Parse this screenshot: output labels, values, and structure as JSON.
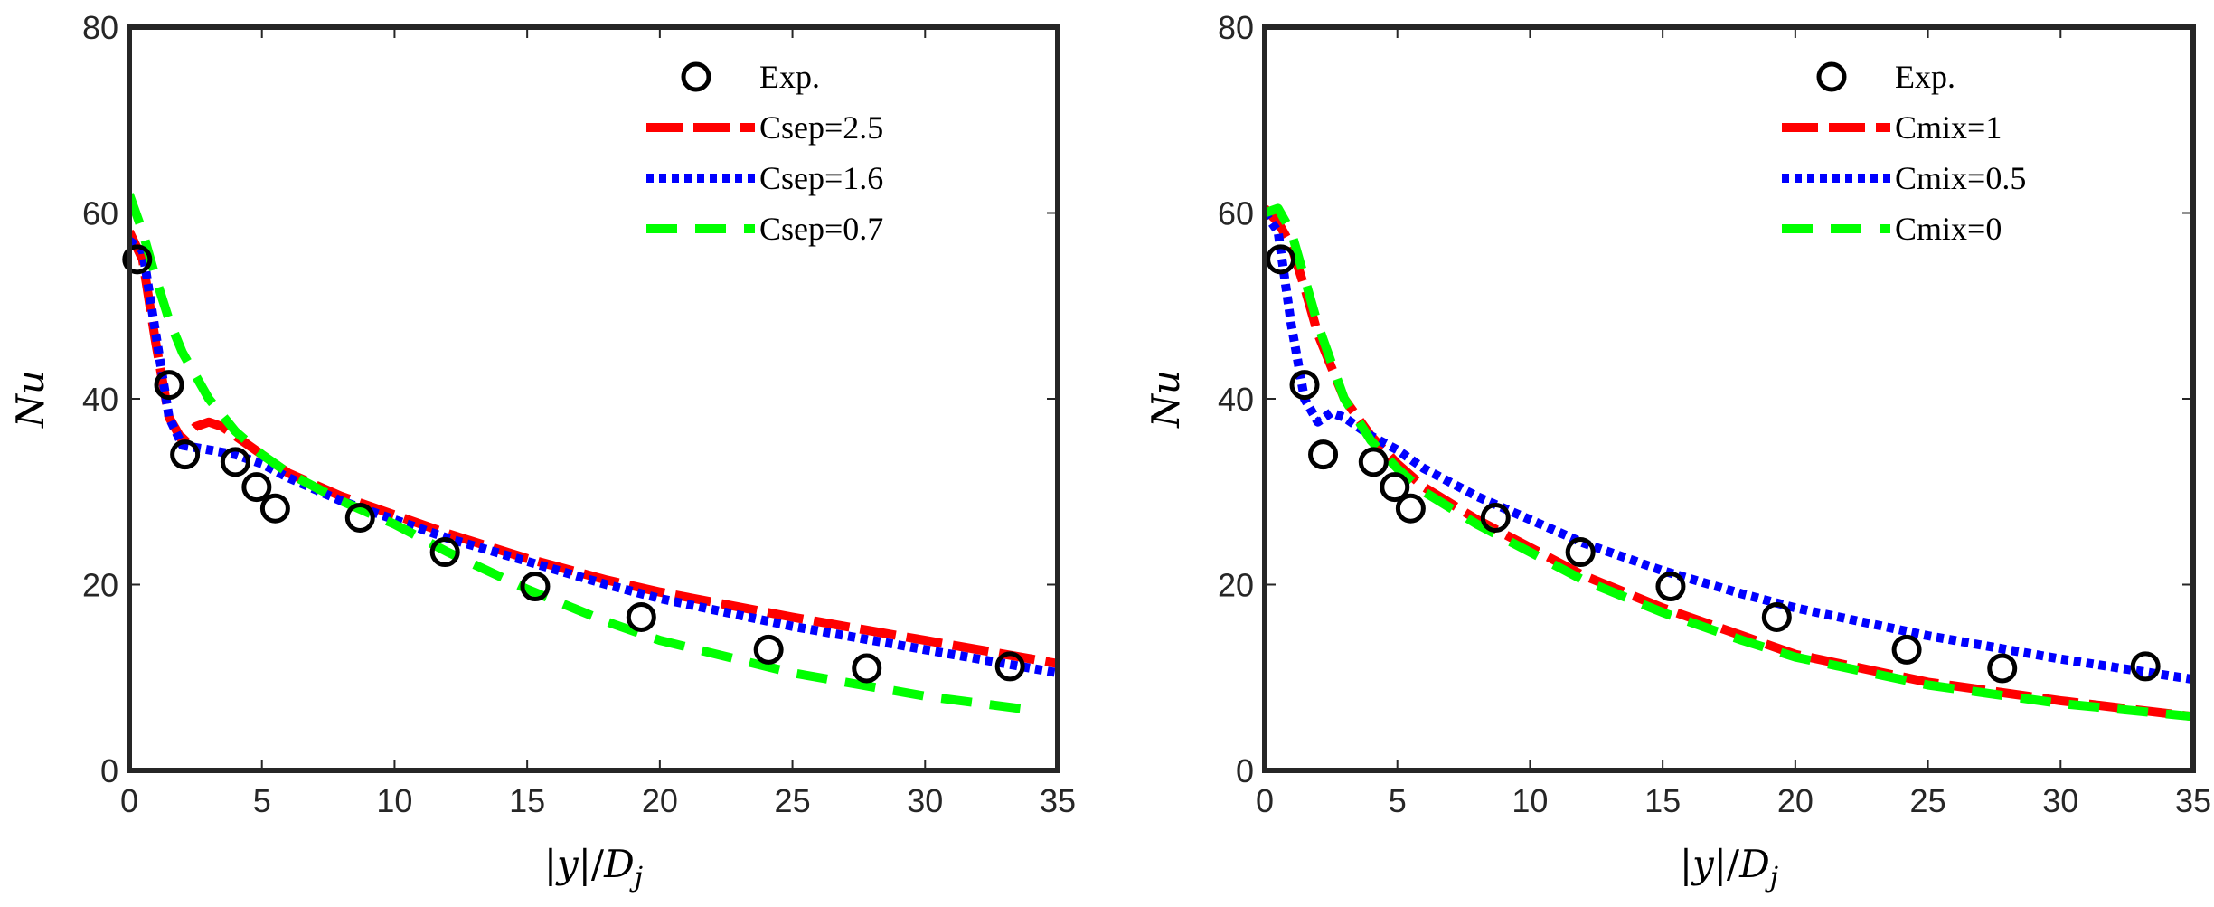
{
  "chart_data": [
    {
      "type": "line",
      "xlabel": "|y|/D_j",
      "xlabel_parts": {
        "bar1": "|",
        "var": "y",
        "bar2": "|/",
        "sym": "D",
        "sub": "j"
      },
      "ylabel": "Nu",
      "xlim": [
        0,
        35
      ],
      "ylim": [
        0,
        80
      ],
      "xticks": [
        0,
        5,
        10,
        15,
        20,
        25,
        30,
        35
      ],
      "yticks": [
        0,
        20,
        40,
        60,
        80
      ],
      "legend_position": "top-right",
      "experiment": {
        "name": "Exp.",
        "x": [
          0.3,
          1.5,
          2.1,
          4.0,
          4.8,
          5.5,
          8.7,
          11.9,
          15.3,
          19.3,
          24.1,
          27.8,
          33.2
        ],
        "y": [
          55,
          41.5,
          34,
          33.2,
          30.5,
          28.2,
          27.2,
          23.5,
          19.8,
          16.5,
          13,
          11,
          11.2
        ]
      },
      "series": [
        {
          "name": "Csep=2.5",
          "color": "#ff0000",
          "dash": "long-dash",
          "x": [
            0,
            0.5,
            1,
            1.5,
            2,
            2.5,
            3,
            3.5,
            4,
            5,
            6,
            8,
            10,
            12,
            15,
            18,
            20,
            25,
            30,
            35
          ],
          "y": [
            58,
            55,
            46,
            38,
            35.5,
            37,
            37.5,
            37,
            36,
            34,
            32,
            29.5,
            27.5,
            25.5,
            22.8,
            20.5,
            19.2,
            16.5,
            14,
            11.5
          ]
        },
        {
          "name": "Csep=1.6",
          "color": "#0000ff",
          "dash": "dotted",
          "x": [
            0,
            0.5,
            1,
            1.5,
            2,
            3,
            4,
            5,
            6,
            8,
            10,
            12,
            15,
            18,
            20,
            25,
            30,
            35
          ],
          "y": [
            57,
            56,
            47,
            38,
            35,
            34.5,
            34,
            33,
            31.5,
            29,
            27,
            25,
            22.5,
            20,
            18.5,
            15.5,
            13,
            10.5
          ]
        },
        {
          "name": "Csep=0.7",
          "color": "#00ff00",
          "dash": "dash",
          "x": [
            0,
            0.5,
            1,
            1.5,
            2,
            3,
            4,
            5,
            6,
            8,
            10,
            12,
            15,
            18,
            20,
            25,
            30,
            34
          ],
          "y": [
            62,
            58,
            53,
            48.5,
            45,
            40,
            36.5,
            34,
            32,
            29,
            26.5,
            23.5,
            19.5,
            16,
            14,
            10.5,
            8,
            6.5
          ]
        }
      ]
    },
    {
      "type": "line",
      "xlabel": "|y|/D_j",
      "xlabel_parts": {
        "bar1": "|",
        "var": "y",
        "bar2": "|/",
        "sym": "D",
        "sub": "j"
      },
      "ylabel": "Nu",
      "xlim": [
        0,
        35
      ],
      "ylim": [
        0,
        80
      ],
      "xticks": [
        0,
        5,
        10,
        15,
        20,
        25,
        30,
        35
      ],
      "yticks": [
        0,
        20,
        40,
        60,
        80
      ],
      "legend_position": "top-right",
      "experiment": {
        "name": "Exp.",
        "x": [
          0.6,
          1.5,
          2.2,
          4.1,
          4.9,
          5.5,
          8.7,
          11.9,
          15.3,
          19.3,
          24.2,
          27.8,
          33.2
        ],
        "y": [
          55,
          41.5,
          34,
          33.2,
          30.5,
          28.2,
          27.2,
          23.5,
          19.8,
          16.5,
          13,
          11,
          11.2
        ]
      },
      "series": [
        {
          "name": "Cmix=1",
          "color": "#ff0000",
          "dash": "long-dash",
          "x": [
            0,
            0.5,
            1,
            1.5,
            2,
            3,
            4,
            5,
            6,
            8,
            10,
            12,
            15,
            18,
            20,
            25,
            30,
            35
          ],
          "y": [
            60.5,
            59,
            56.5,
            52,
            47,
            40,
            36,
            33,
            30.5,
            27,
            24,
            21,
            17.5,
            14.5,
            12.5,
            9.5,
            7.5,
            5.8
          ]
        },
        {
          "name": "Cmix=0.5",
          "color": "#0000ff",
          "dash": "dotted",
          "x": [
            0,
            0.5,
            1,
            1.5,
            2,
            2.5,
            3,
            4,
            5,
            6,
            8,
            10,
            12,
            15,
            18,
            20,
            25,
            30,
            35
          ],
          "y": [
            60,
            58,
            48,
            40,
            37.5,
            38.5,
            38,
            36,
            34.5,
            32.5,
            29.5,
            27,
            24.5,
            21.5,
            19,
            17.5,
            14.5,
            12,
            9.8
          ]
        },
        {
          "name": "Cmix=0",
          "color": "#00ff00",
          "dash": "dash",
          "x": [
            0,
            0.5,
            1,
            1.5,
            2,
            3,
            4,
            5,
            6,
            8,
            10,
            12,
            15,
            18,
            20,
            25,
            30,
            35
          ],
          "y": [
            60,
            60.5,
            58,
            53,
            48,
            40,
            35.5,
            32.5,
            30,
            26.5,
            23.5,
            20.5,
            17,
            14,
            12.2,
            9.2,
            7.2,
            5.8
          ]
        }
      ]
    }
  ]
}
